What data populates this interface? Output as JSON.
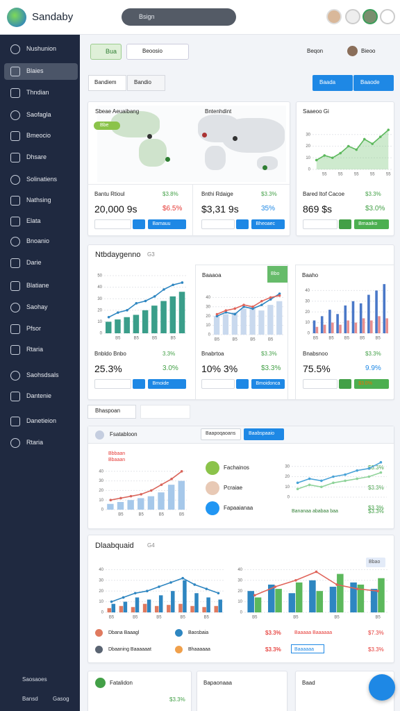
{
  "header": {
    "brand": "Sandaby",
    "search": "Bsign"
  },
  "sidebar": {
    "items": [
      "Nushunion",
      "Blaies",
      "Thndian",
      "Saofagla",
      "Bmeocio",
      "Dhsare",
      "Solinatiens",
      "Nathsing",
      "Elata",
      "Bnoanio",
      "Darie",
      "Blatiane",
      "Saohay",
      "Pfsor",
      "Rtaria",
      "Saohsdsals",
      "Dantenie",
      "Danetieion",
      "Rtaria"
    ],
    "footer": [
      "Saosaoes",
      "Bansd",
      "Gasog"
    ]
  },
  "toolbar": {
    "button": "Bua",
    "dropdown": "Beoosio",
    "filter": "Beqon",
    "user": "Bieoo"
  },
  "tabs": [
    "Bandiem",
    "Bandio"
  ],
  "actions": [
    "Baada",
    "Baaode"
  ],
  "map_card": {
    "title": "Sbeae Aeuaibang",
    "subtitle": "Bntenhdint",
    "badge": "Bbe"
  },
  "trend_card": {
    "title": "Saaeoo Gi",
    "chart": {
      "type": "combo",
      "ylim": [
        0,
        40
      ],
      "yticks": [
        0,
        10,
        20,
        30
      ],
      "categories": [
        null,
        "55",
        null,
        "55",
        null,
        "55",
        null,
        "55",
        null,
        "55"
      ],
      "series": [
        {
          "type": "area",
          "color": "#5cb85c",
          "values": [
            8,
            12,
            10,
            14,
            20,
            17,
            26,
            22,
            28,
            34
          ]
        }
      ]
    }
  },
  "stats": [
    {
      "label": "Bantu Rtioul",
      "change": "$3.8%",
      "value": "20,000 9s",
      "delta": "$6.5%",
      "button": "Bamauu"
    },
    {
      "label": "Bnthi Rdaige",
      "change": "$3.3%",
      "value": "$3,31 9s",
      "delta": "35%",
      "button": "Bheoaec"
    },
    {
      "label": "Bared Itof Cacoe",
      "change": "$3.3%",
      "value": "869 $s",
      "delta": "$3.0%",
      "button": "Bmaaiko"
    },
    {
      "label": "Bnbldo Bnbo",
      "change": "3.3%",
      "value": "25.3%",
      "delta": "3.0%",
      "button": "Bmoide"
    },
    {
      "label": "Bnabrtoa",
      "change": "$3.3%",
      "value": "10% 3%",
      "delta": "$3.3%",
      "button": "Bmoidonca"
    },
    {
      "label": "Bnabsnoo",
      "change": "$3.3%",
      "value": "75.5%",
      "delta": "9.9%",
      "button": "$3.0%"
    }
  ],
  "overview": {
    "title": "Ntbdaygenno",
    "tag": "G3",
    "charts": [
      {
        "type": "combo",
        "ylim": [
          0,
          50
        ],
        "yticks": [
          0,
          10,
          20,
          30,
          40,
          50
        ],
        "categories": [
          null,
          "B5",
          null,
          "B5",
          null,
          "B5",
          null,
          "B5",
          null
        ],
        "series": [
          {
            "type": "bar",
            "color": "#3a9e8a",
            "values": [
              10,
              12,
              14,
              16,
              20,
              24,
              28,
              32,
              36
            ]
          },
          {
            "type": "line",
            "color": "#2e86c1",
            "values": [
              14,
              18,
              20,
              26,
              28,
              32,
              38,
              42,
              44
            ]
          }
        ]
      },
      {
        "type": "combo",
        "title": "Baaaoa",
        "badge": "Bbo",
        "ylim": [
          0,
          50
        ],
        "yticks": [
          0,
          10,
          20,
          30,
          40
        ],
        "categories": [
          "B5",
          null,
          "B5",
          null,
          "B5",
          null,
          "B5",
          null
        ],
        "series": [
          {
            "type": "bar",
            "color": "#c9d9ee",
            "values": [
              20,
              22,
              24,
              28,
              30,
              26,
              32,
              36
            ]
          },
          {
            "type": "line",
            "color": "#2e86c1",
            "values": [
              20,
              24,
              22,
              30,
              28,
              32,
              38,
              44
            ]
          },
          {
            "type": "line",
            "color": "#e0645a",
            "values": [
              22,
              26,
              28,
              32,
              30,
              36,
              40,
              42
            ]
          }
        ]
      },
      {
        "type": "combo",
        "title": "Baaho",
        "ylim": [
          0,
          50
        ],
        "yticks": [
          0,
          10,
          20,
          30,
          40
        ],
        "categories": [
          "B5",
          null,
          "B5",
          null,
          "B5",
          null,
          "B5",
          null,
          "B5",
          null
        ],
        "series": [
          {
            "type": "bar",
            "color": "#4a78c8",
            "values": [
              12,
              16,
              22,
              18,
              26,
              30,
              28,
              36,
              40,
              46
            ]
          },
          {
            "type": "bar",
            "color": "#e88f8f",
            "values": [
              6,
              8,
              10,
              8,
              12,
              10,
              14,
              12,
              16,
              14
            ]
          }
        ]
      }
    ]
  },
  "filters": [
    "Bhaspoan"
  ],
  "detail": {
    "title": "Fsatabloon",
    "buttons": [
      "Baapoqaoans",
      "Baabspaaio"
    ],
    "legend": [
      "Bbbaan",
      "Bbaaan"
    ],
    "list": [
      {
        "name": "Fachainos",
        "value": "$3.3%"
      },
      {
        "name": "Pcraiae",
        "value": "$3.3%"
      },
      {
        "name": "Fapaaianaa",
        "value": "$3.3%"
      }
    ],
    "footer": {
      "name": "Bananaa ababaa baa",
      "value": "$3.3%"
    },
    "charts": [
      {
        "type": "combo",
        "ylim": [
          0,
          50
        ],
        "yticks": [
          0,
          10,
          20,
          30,
          40
        ],
        "categories": [
          null,
          "B5",
          null,
          "B5",
          null,
          "B5",
          null,
          "B5"
        ],
        "series": [
          {
            "type": "bar",
            "color": "#a6c8ea",
            "values": [
              6,
              8,
              10,
              12,
              14,
              18,
              26,
              30
            ]
          },
          {
            "type": "line",
            "color": "#d9645a",
            "values": [
              10,
              12,
              14,
              16,
              20,
              26,
              32,
              40
            ]
          }
        ]
      },
      {
        "type": "combo",
        "ylim": [
          0,
          40
        ],
        "yticks": [
          0,
          10,
          20,
          30
        ],
        "categories": [
          null,
          null,
          null,
          null,
          null,
          null,
          null,
          null
        ],
        "series": [
          {
            "type": "line",
            "color": "#4aa3d8",
            "values": [
              14,
              18,
              16,
              20,
              22,
              26,
              28,
              34
            ]
          },
          {
            "type": "line",
            "color": "#8fd39a",
            "values": [
              8,
              12,
              10,
              14,
              16,
              18,
              20,
              24
            ]
          }
        ]
      }
    ]
  },
  "analysis": {
    "title": "Dlaabquaid",
    "tag": "G4",
    "badge": "Bbao",
    "list": [
      {
        "name": "Dbana Baaagl",
        "value": "$3.3%"
      },
      {
        "name": "Baosbaia",
        "value": "$3.3%"
      },
      {
        "name": "Dbaaning Baaaaaat",
        "value": "$3.3%"
      },
      {
        "name": "Bhaaaaaa",
        "value": "$3.3%"
      }
    ],
    "right": [
      {
        "name": "Baaaaa Baaaaaa",
        "value": "$7.3%"
      },
      {
        "name": "Baaaaaa",
        "value": "$3.3%"
      }
    ],
    "charts": [
      {
        "type": "combo",
        "ylim": [
          0,
          50
        ],
        "yticks": [
          0,
          10,
          20,
          30,
          40
        ],
        "categories": [
          "B5",
          null,
          "B5",
          null,
          "B5",
          null,
          "B5",
          null,
          "B5",
          null
        ],
        "series": [
          {
            "type": "bar",
            "color": "#e07a5f",
            "values": [
              4,
              6,
              5,
              8,
              6,
              7,
              8,
              6,
              5,
              6
            ]
          },
          {
            "type": "bar",
            "color": "#2e86c1",
            "values": [
              8,
              10,
              14,
              12,
              16,
              20,
              30,
              18,
              14,
              12
            ]
          },
          {
            "type": "line",
            "color": "#2e86c1",
            "values": [
              10,
              14,
              18,
              20,
              24,
              28,
              32,
              26,
              22,
              18
            ]
          }
        ]
      },
      {
        "type": "combo",
        "ylim": [
          0,
          50
        ],
        "yticks": [
          0,
          10,
          20,
          30,
          40
        ],
        "categories": [
          "B5",
          null,
          "B5",
          null,
          "B5",
          null,
          "B5"
        ],
        "series": [
          {
            "type": "bar",
            "color": "#2e86c1",
            "values": [
              20,
              26,
              18,
              30,
              24,
              28,
              22
            ]
          },
          {
            "type": "bar",
            "color": "#5cb85c",
            "values": [
              14,
              22,
              28,
              20,
              36,
              26,
              32
            ]
          },
          {
            "type": "line",
            "color": "#e0645a",
            "values": [
              16,
              24,
              30,
              38,
              26,
              22,
              20
            ]
          }
        ]
      }
    ]
  },
  "bottom_cards": [
    {
      "title": "Fatalidon",
      "value": "$3.3%"
    },
    {
      "title": "Bapaonaaa"
    },
    {
      "title": "Baad"
    }
  ]
}
